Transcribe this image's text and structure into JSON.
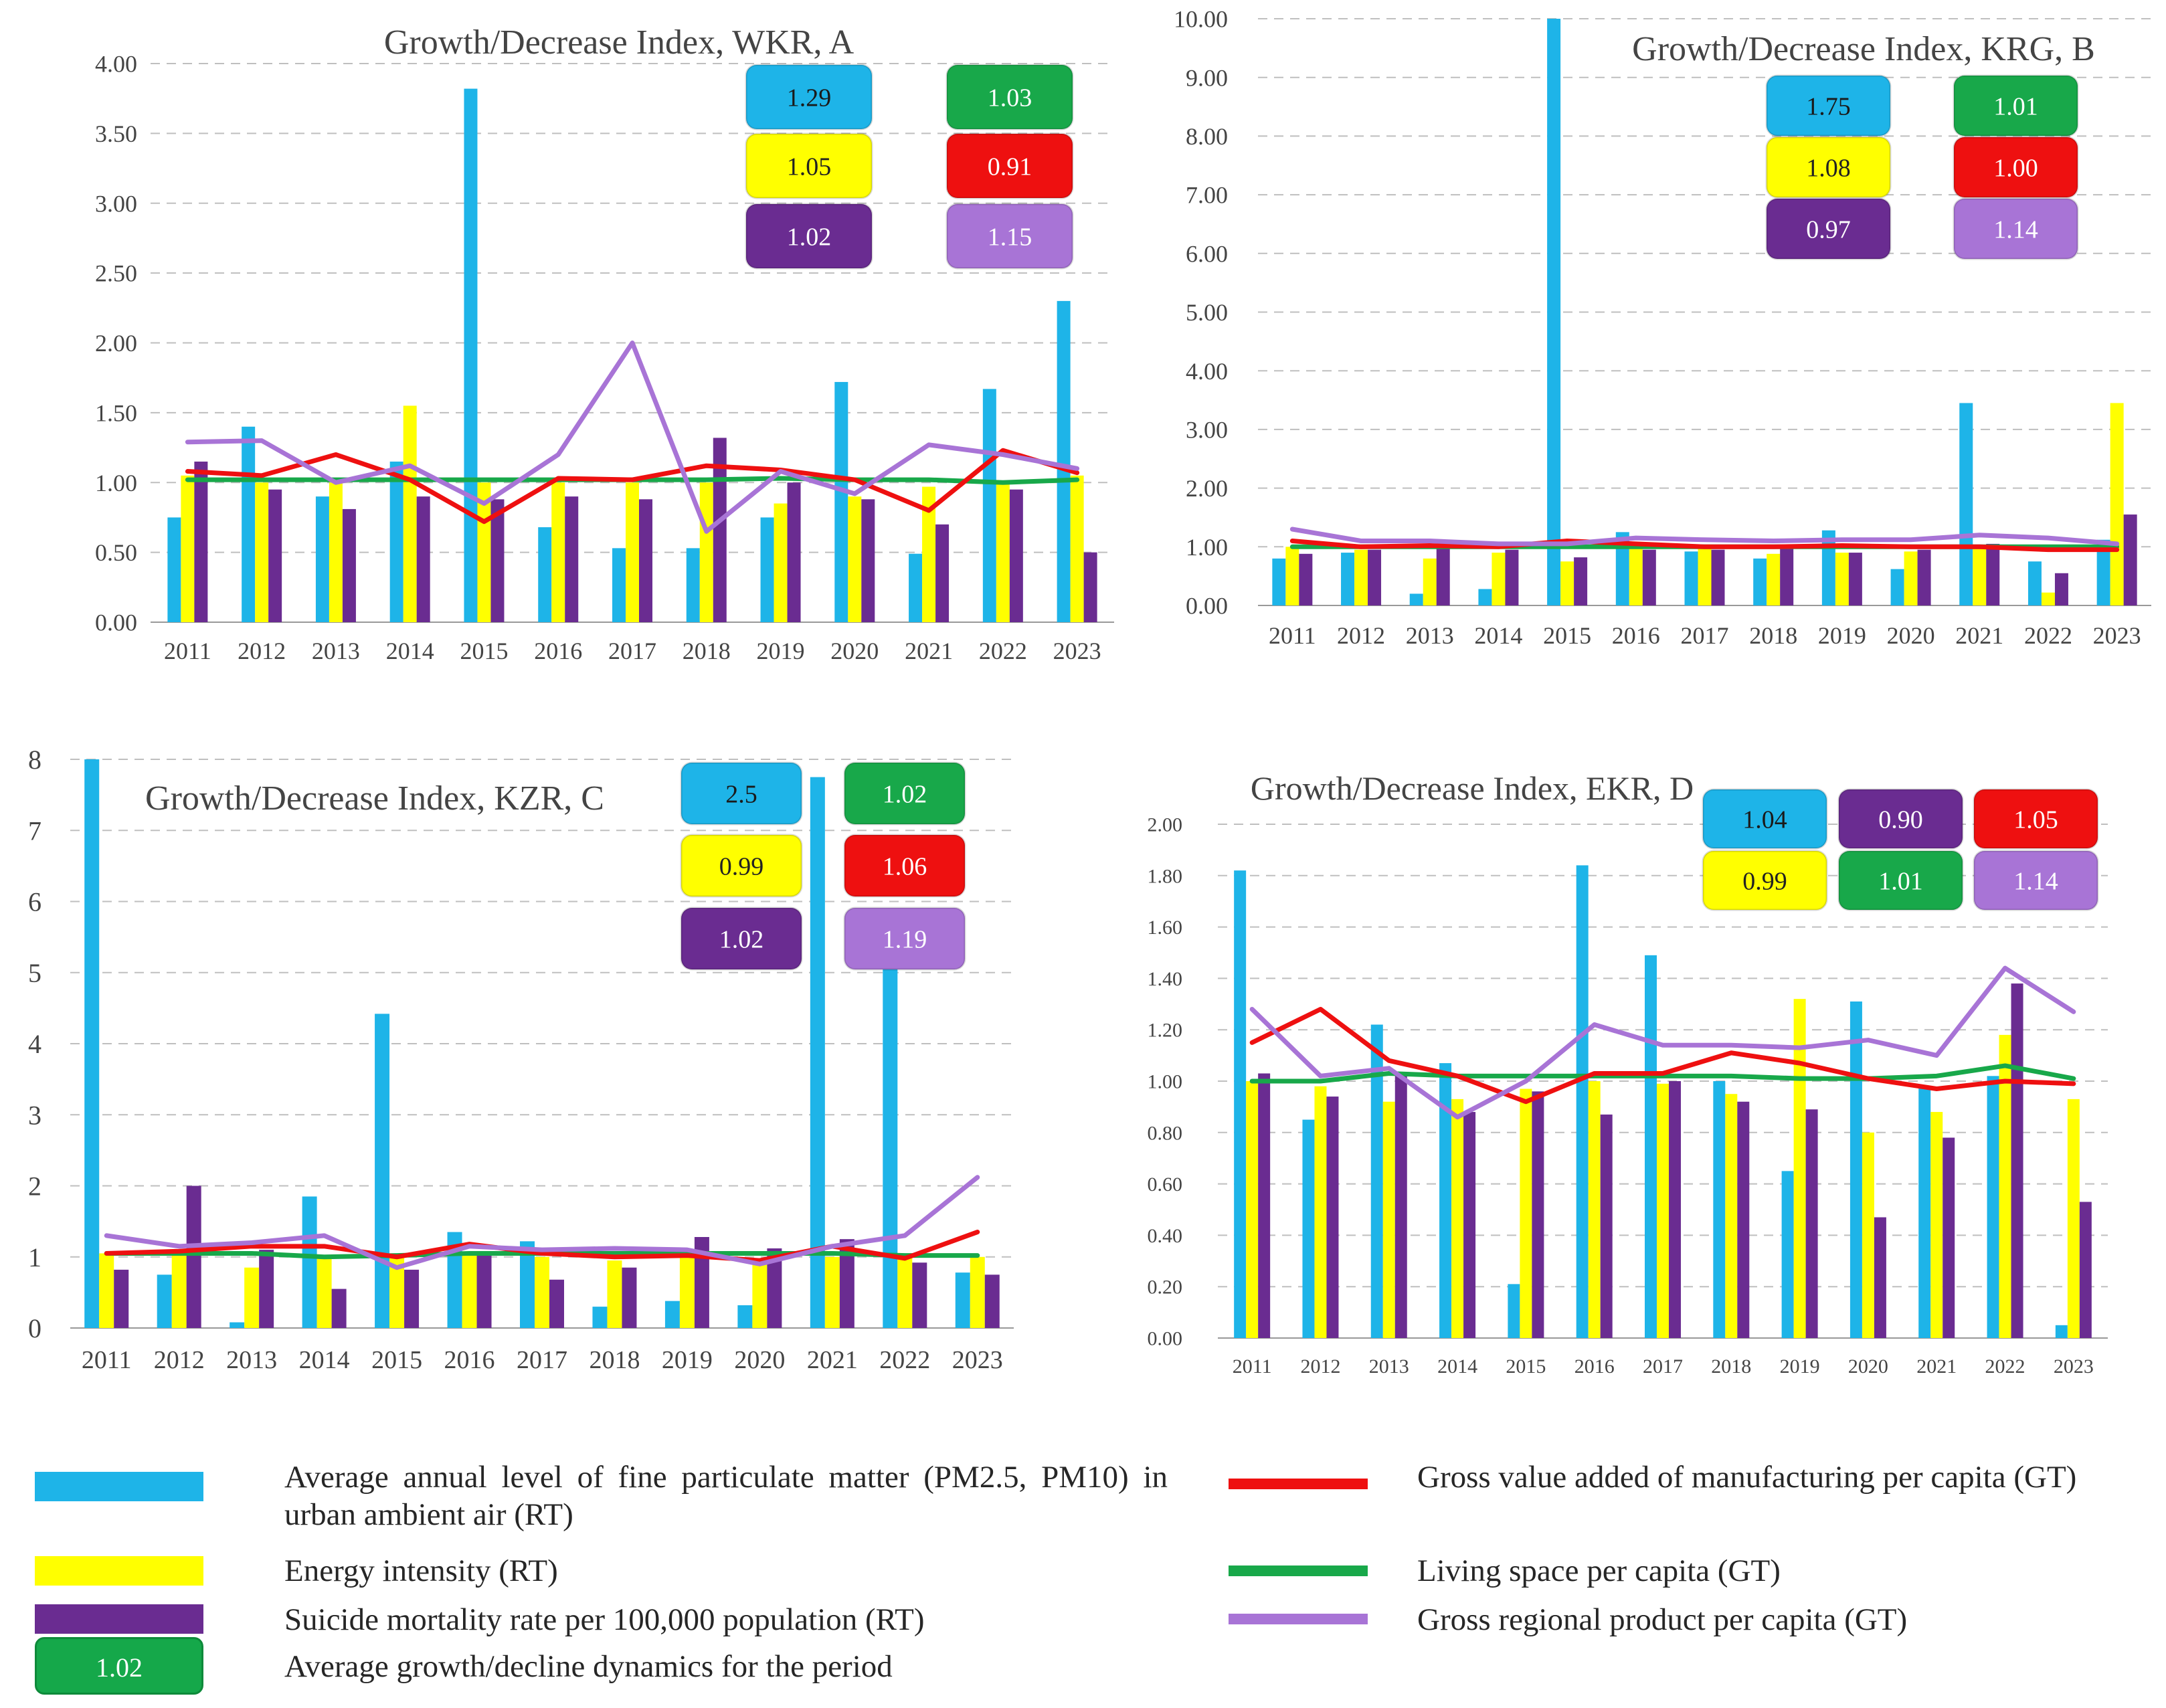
{
  "colors": {
    "pm": "#1eb4e8",
    "energy": "#ffff00",
    "suicide": "#6a2c91",
    "gva": "#ee1010",
    "living": "#18a84a",
    "grp": "#a874d6",
    "grid": "#bfbfbf",
    "axis": "#999999"
  },
  "chart_data": [
    {
      "id": "A",
      "type": "bar+line",
      "title": "Growth/Decrease Index, WKR, A",
      "categories": [
        "2011",
        "2012",
        "2013",
        "2014",
        "2015",
        "2016",
        "2017",
        "2018",
        "2019",
        "2020",
        "2021",
        "2022",
        "2023"
      ],
      "ylim": [
        0,
        4
      ],
      "yticks": [
        "0.00",
        "0.50",
        "1.00",
        "1.50",
        "2.00",
        "2.50",
        "3.00",
        "3.50",
        "4.00"
      ],
      "bars": [
        {
          "name": "pm",
          "values": [
            0.75,
            1.4,
            0.9,
            1.15,
            3.82,
            0.68,
            0.53,
            0.53,
            0.75,
            1.72,
            0.49,
            1.67,
            2.3
          ]
        },
        {
          "name": "energy",
          "values": [
            1.05,
            1.0,
            1.0,
            1.55,
            1.0,
            1.0,
            1.0,
            1.0,
            0.85,
            0.9,
            0.97,
            1.0,
            1.05
          ]
        },
        {
          "name": "suicide",
          "values": [
            1.15,
            0.95,
            0.81,
            0.9,
            0.88,
            0.9,
            0.88,
            1.32,
            1.0,
            0.88,
            0.7,
            0.95,
            0.5
          ]
        }
      ],
      "lines": [
        {
          "name": "living",
          "values": [
            1.02,
            1.02,
            1.02,
            1.02,
            1.02,
            1.02,
            1.02,
            1.02,
            1.03,
            1.02,
            1.02,
            1.0,
            1.02
          ]
        },
        {
          "name": "gva",
          "values": [
            1.08,
            1.05,
            1.2,
            1.02,
            0.72,
            1.03,
            1.02,
            1.12,
            1.09,
            1.02,
            0.8,
            1.23,
            1.07
          ]
        },
        {
          "name": "grp",
          "values": [
            1.29,
            1.3,
            1.0,
            1.12,
            0.85,
            1.2,
            2.0,
            0.65,
            1.08,
            0.92,
            1.27,
            1.2,
            1.1
          ]
        }
      ],
      "badges": [
        {
          "text": "1.29",
          "color": "pm"
        },
        {
          "text": "1.03",
          "color": "living"
        },
        {
          "text": "1.05",
          "color": "energy"
        },
        {
          "text": "0.91",
          "color": "gva"
        },
        {
          "text": "1.02",
          "color": "suicide"
        },
        {
          "text": "1.15",
          "color": "grp"
        }
      ]
    },
    {
      "id": "B",
      "type": "bar+line",
      "title": "Growth/Decrease Index, KRG, B",
      "categories": [
        "2011",
        "2012",
        "2013",
        "2014",
        "2015",
        "2016",
        "2017",
        "2018",
        "2019",
        "2020",
        "2021",
        "2022",
        "2023"
      ],
      "ylim": [
        0,
        10
      ],
      "yticks": [
        "0.00",
        "1.00",
        "2.00",
        "3.00",
        "4.00",
        "5.00",
        "6.00",
        "7.00",
        "8.00",
        "9.00",
        "10.00"
      ],
      "bars": [
        {
          "name": "pm",
          "values": [
            0.8,
            0.9,
            0.2,
            0.28,
            10.0,
            1.25,
            0.92,
            0.8,
            1.28,
            0.62,
            3.45,
            0.75,
            1.12
          ]
        },
        {
          "name": "energy",
          "values": [
            1.0,
            0.95,
            0.8,
            0.9,
            0.75,
            1.0,
            1.0,
            0.88,
            0.9,
            0.92,
            1.0,
            0.22,
            3.45
          ]
        },
        {
          "name": "suicide",
          "values": [
            0.88,
            0.95,
            1.0,
            0.95,
            0.82,
            0.95,
            0.95,
            1.0,
            0.9,
            0.95,
            1.05,
            0.55,
            1.55
          ]
        }
      ],
      "lines": [
        {
          "name": "living",
          "values": [
            1.0,
            1.0,
            1.0,
            1.0,
            1.0,
            1.0,
            1.0,
            1.0,
            1.0,
            1.0,
            1.0,
            1.0,
            1.0
          ]
        },
        {
          "name": "gva",
          "values": [
            1.1,
            1.0,
            1.02,
            1.0,
            1.1,
            1.05,
            1.0,
            1.0,
            1.02,
            1.0,
            1.0,
            0.95,
            0.95
          ]
        },
        {
          "name": "grp",
          "values": [
            1.3,
            1.1,
            1.1,
            1.05,
            1.05,
            1.15,
            1.12,
            1.1,
            1.12,
            1.12,
            1.2,
            1.15,
            1.05
          ]
        }
      ],
      "badges": [
        {
          "text": "1.75",
          "color": "pm"
        },
        {
          "text": "1.01",
          "color": "living"
        },
        {
          "text": "1.08",
          "color": "energy"
        },
        {
          "text": "1.00",
          "color": "gva"
        },
        {
          "text": "0.97",
          "color": "suicide"
        },
        {
          "text": "1.14",
          "color": "grp"
        }
      ]
    },
    {
      "id": "C",
      "type": "bar+line",
      "title": "Growth/Decrease Index, KZR, C",
      "categories": [
        "2011",
        "2012",
        "2013",
        "2014",
        "2015",
        "2016",
        "2017",
        "2018",
        "2019",
        "2020",
        "2021",
        "2022",
        "2023"
      ],
      "ylim": [
        0,
        8
      ],
      "yticks": [
        "0",
        "1",
        "2",
        "3",
        "4",
        "5",
        "6",
        "7",
        "8"
      ],
      "bars": [
        {
          "name": "pm",
          "values": [
            8.0,
            0.75,
            0.08,
            1.85,
            4.42,
            1.35,
            1.22,
            0.3,
            0.38,
            0.32,
            7.75,
            5.05,
            0.78
          ]
        },
        {
          "name": "energy",
          "values": [
            1.05,
            1.05,
            0.85,
            1.0,
            1.0,
            1.05,
            1.0,
            0.95,
            1.05,
            0.9,
            1.0,
            1.0,
            1.0
          ]
        },
        {
          "name": "suicide",
          "values": [
            0.82,
            2.0,
            1.1,
            0.55,
            0.82,
            1.05,
            0.68,
            0.85,
            1.28,
            1.12,
            1.25,
            0.92,
            0.75
          ]
        }
      ],
      "lines": [
        {
          "name": "living",
          "values": [
            1.05,
            1.05,
            1.05,
            1.0,
            1.02,
            1.05,
            1.05,
            1.05,
            1.05,
            1.05,
            1.05,
            1.02,
            1.02
          ]
        },
        {
          "name": "gva",
          "values": [
            1.05,
            1.08,
            1.15,
            1.15,
            1.0,
            1.18,
            1.05,
            1.0,
            1.02,
            0.95,
            1.15,
            0.98,
            1.35
          ]
        },
        {
          "name": "grp",
          "values": [
            1.3,
            1.15,
            1.2,
            1.3,
            0.85,
            1.15,
            1.1,
            1.12,
            1.1,
            0.9,
            1.15,
            1.3,
            2.12
          ]
        }
      ],
      "badges": [
        {
          "text": "2.5",
          "color": "pm"
        },
        {
          "text": "1.02",
          "color": "living"
        },
        {
          "text": "0.99",
          "color": "energy"
        },
        {
          "text": "1.06",
          "color": "gva"
        },
        {
          "text": "1.02",
          "color": "suicide"
        },
        {
          "text": "1.19",
          "color": "grp"
        }
      ]
    },
    {
      "id": "D",
      "type": "bar+line",
      "title": "Growth/Decrease Index, EKR, D",
      "categories": [
        "2011",
        "2012",
        "2013",
        "2014",
        "2015",
        "2016",
        "2017",
        "2018",
        "2019",
        "2020",
        "2021",
        "2022",
        "2023"
      ],
      "ylim": [
        0,
        2
      ],
      "yticks": [
        "0.00",
        "0.20",
        "0.40",
        "0.60",
        "0.80",
        "1.00",
        "1.20",
        "1.40",
        "1.60",
        "1.80",
        "2.00"
      ],
      "bars": [
        {
          "name": "pm",
          "values": [
            1.82,
            0.85,
            1.22,
            1.07,
            0.21,
            1.84,
            1.49,
            1.0,
            0.65,
            1.31,
            0.98,
            1.02,
            0.05
          ]
        },
        {
          "name": "energy",
          "values": [
            1.0,
            0.98,
            0.92,
            0.93,
            0.97,
            1.0,
            0.99,
            0.95,
            1.32,
            0.8,
            0.88,
            1.18,
            0.93
          ]
        },
        {
          "name": "suicide",
          "values": [
            1.03,
            0.94,
            1.02,
            0.88,
            0.96,
            0.87,
            1.0,
            0.92,
            0.89,
            0.47,
            0.78,
            1.38,
            0.53
          ]
        }
      ],
      "lines": [
        {
          "name": "living",
          "values": [
            1.0,
            1.0,
            1.03,
            1.02,
            1.02,
            1.02,
            1.02,
            1.02,
            1.01,
            1.01,
            1.02,
            1.06,
            1.01
          ]
        },
        {
          "name": "gva",
          "values": [
            1.15,
            1.28,
            1.08,
            1.02,
            0.92,
            1.03,
            1.03,
            1.11,
            1.07,
            1.01,
            0.97,
            1.0,
            0.99
          ]
        },
        {
          "name": "grp",
          "values": [
            1.28,
            1.02,
            1.05,
            0.86,
            1.0,
            1.22,
            1.14,
            1.14,
            1.13,
            1.16,
            1.1,
            1.44,
            1.27
          ]
        }
      ],
      "badges": [
        {
          "text": "1.04",
          "color": "pm"
        },
        {
          "text": "0.90",
          "color": "suicide"
        },
        {
          "text": "1.05",
          "color": "gva"
        },
        {
          "text": "0.99",
          "color": "energy"
        },
        {
          "text": "1.01",
          "color": "living"
        },
        {
          "text": "1.14",
          "color": "grp"
        }
      ]
    }
  ],
  "legend": {
    "pm": "Average annual level of fine particulate matter (PM2.5, PM10) in urban ambient air (RT)",
    "energy": "Energy intensity (RT)",
    "suicide": "Suicide mortality rate per 100,000 population (RT)",
    "badge_value": "1.02",
    "badge_text": "Average growth/decline dynamics for the period",
    "gva": "Gross value added of manufacturing per capita (GT)",
    "living": "Living space per capita (GT)",
    "grp": "Gross regional product per capita (GT)"
  }
}
